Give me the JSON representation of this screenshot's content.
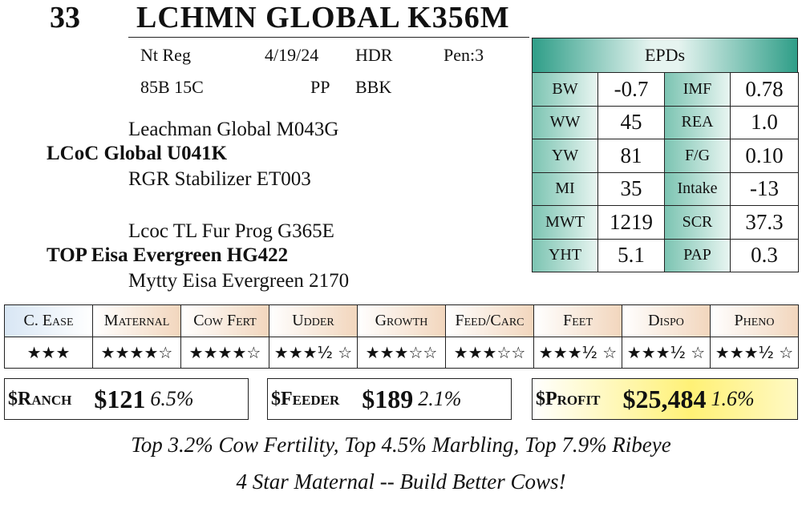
{
  "lot": "33",
  "name": "LCHMN GLOBAL K356M",
  "info": {
    "row1": [
      "Nt Reg",
      "4/19/24",
      "HDR",
      "Pen:3"
    ],
    "row2": [
      "85B 15C",
      "PP",
      "BBK"
    ]
  },
  "pedigree": [
    "Leachman Global M043G",
    "LCoC Global U041K",
    "RGR Stabilizer ET003",
    "Lcoc TL Fur Prog G365E",
    "TOP Eisa Evergreen HG422",
    "Mytty Eisa Evergreen 2170"
  ],
  "epds": {
    "title": "EPDs",
    "rows": [
      [
        "BW",
        "-0.7",
        "IMF",
        "0.78"
      ],
      [
        "WW",
        "45",
        "REA",
        "1.0"
      ],
      [
        "YW",
        "81",
        "F/G",
        "0.10"
      ],
      [
        "MI",
        "35",
        "Intake",
        "-13"
      ],
      [
        "MWT",
        "1219",
        "SCR",
        "37.3"
      ],
      [
        "YHT",
        "5.1",
        "PAP",
        "0.3"
      ]
    ]
  },
  "ratings": {
    "headers": [
      "C. Ease",
      "Maternal",
      "Cow Fert",
      "Udder",
      "Growth",
      "Feed/Carc",
      "Feet",
      "Dispo",
      "Pheno"
    ],
    "stars": [
      "★★★",
      "★★★★☆",
      "★★★★☆",
      "★★★½ ☆",
      "★★★☆☆",
      "★★★☆☆",
      "★★★½ ☆",
      "★★★½ ☆",
      "★★★½ ☆"
    ]
  },
  "indexes": [
    {
      "label": "$Ranch",
      "value": "$121",
      "pct": "6.5%"
    },
    {
      "label": "$Feeder",
      "value": "$189",
      "pct": "2.1%"
    },
    {
      "label": "$Profit",
      "value": "$25,484",
      "pct": "1.6%"
    }
  ],
  "notes": [
    "Top 3.2% Cow Fertility, Top 4.5% Marbling, Top 7.9% Ribeye",
    "4 Star Maternal -- Build Better Cows!"
  ]
}
